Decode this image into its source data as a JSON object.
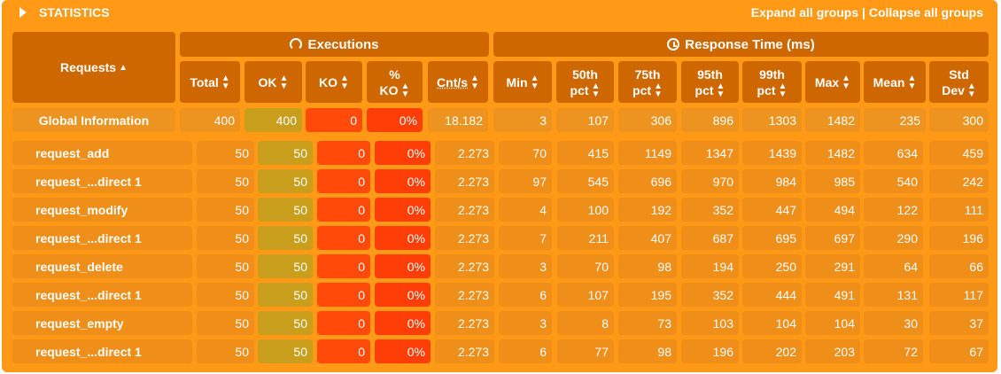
{
  "panel_title": "STATISTICS",
  "links": {
    "expand": "Expand all groups",
    "separator": "|",
    "collapse": "Collapse all groups"
  },
  "groups": {
    "requests": "Requests",
    "executions": "Executions",
    "response_time": "Response Time (ms)"
  },
  "columns": {
    "total": "Total",
    "ok": "OK",
    "ko": "KO",
    "ko_pct_1": "%",
    "ko_pct_2": "KO",
    "cnt": "Cnt/s",
    "min": "Min",
    "p50_1": "50th",
    "p50_2": "pct",
    "p75_1": "75th",
    "p75_2": "pct",
    "p95_1": "95th",
    "p95_2": "pct",
    "p99_1": "99th",
    "p99_2": "pct",
    "max": "Max",
    "mean": "Mean",
    "std_1": "Std",
    "std_2": "Dev"
  },
  "sort_icons": {
    "up": "▲",
    "down": "▼",
    "active": "▲"
  },
  "rows": [
    {
      "name": "Global Information",
      "total": "400",
      "ok": "400",
      "ko": "0",
      "ko_pct": "0%",
      "cnt": "18.182",
      "min": "3",
      "p50": "107",
      "p75": "306",
      "p95": "896",
      "p99": "1303",
      "max": "1482",
      "mean": "235",
      "std": "300"
    },
    {
      "name": "request_add",
      "total": "50",
      "ok": "50",
      "ko": "0",
      "ko_pct": "0%",
      "cnt": "2.273",
      "min": "70",
      "p50": "415",
      "p75": "1149",
      "p95": "1347",
      "p99": "1439",
      "max": "1482",
      "mean": "634",
      "std": "459"
    },
    {
      "name": "request_...direct 1",
      "total": "50",
      "ok": "50",
      "ko": "0",
      "ko_pct": "0%",
      "cnt": "2.273",
      "min": "97",
      "p50": "545",
      "p75": "696",
      "p95": "970",
      "p99": "984",
      "max": "985",
      "mean": "540",
      "std": "242"
    },
    {
      "name": "request_modify",
      "total": "50",
      "ok": "50",
      "ko": "0",
      "ko_pct": "0%",
      "cnt": "2.273",
      "min": "4",
      "p50": "100",
      "p75": "192",
      "p95": "352",
      "p99": "447",
      "max": "494",
      "mean": "122",
      "std": "111"
    },
    {
      "name": "request_...direct 1",
      "total": "50",
      "ok": "50",
      "ko": "0",
      "ko_pct": "0%",
      "cnt": "2.273",
      "min": "7",
      "p50": "211",
      "p75": "407",
      "p95": "687",
      "p99": "695",
      "max": "697",
      "mean": "290",
      "std": "196"
    },
    {
      "name": "request_delete",
      "total": "50",
      "ok": "50",
      "ko": "0",
      "ko_pct": "0%",
      "cnt": "2.273",
      "min": "3",
      "p50": "70",
      "p75": "98",
      "p95": "194",
      "p99": "250",
      "max": "291",
      "mean": "64",
      "std": "66"
    },
    {
      "name": "request_...direct 1",
      "total": "50",
      "ok": "50",
      "ko": "0",
      "ko_pct": "0%",
      "cnt": "2.273",
      "min": "6",
      "p50": "107",
      "p75": "195",
      "p95": "352",
      "p99": "444",
      "max": "491",
      "mean": "131",
      "std": "117"
    },
    {
      "name": "request_empty",
      "total": "50",
      "ok": "50",
      "ko": "0",
      "ko_pct": "0%",
      "cnt": "2.273",
      "min": "3",
      "p50": "8",
      "p75": "73",
      "p95": "103",
      "p99": "104",
      "max": "104",
      "mean": "30",
      "std": "37"
    },
    {
      "name": "request_...direct 1",
      "total": "50",
      "ok": "50",
      "ko": "0",
      "ko_pct": "0%",
      "cnt": "2.273",
      "min": "6",
      "p50": "77",
      "p75": "98",
      "p95": "196",
      "p99": "202",
      "max": "203",
      "mean": "72",
      "std": "67"
    }
  ],
  "colors": {
    "panel": "#ff9916",
    "header_cell": "#cf6700",
    "row_cell": "#f08e1a",
    "ok_cell": "#c99e1d",
    "ko_cell": "#ff4a0a"
  },
  "icons": {
    "collapse": "caret-right-icon",
    "executions": "refresh-icon",
    "response_time": "clock-icon"
  }
}
